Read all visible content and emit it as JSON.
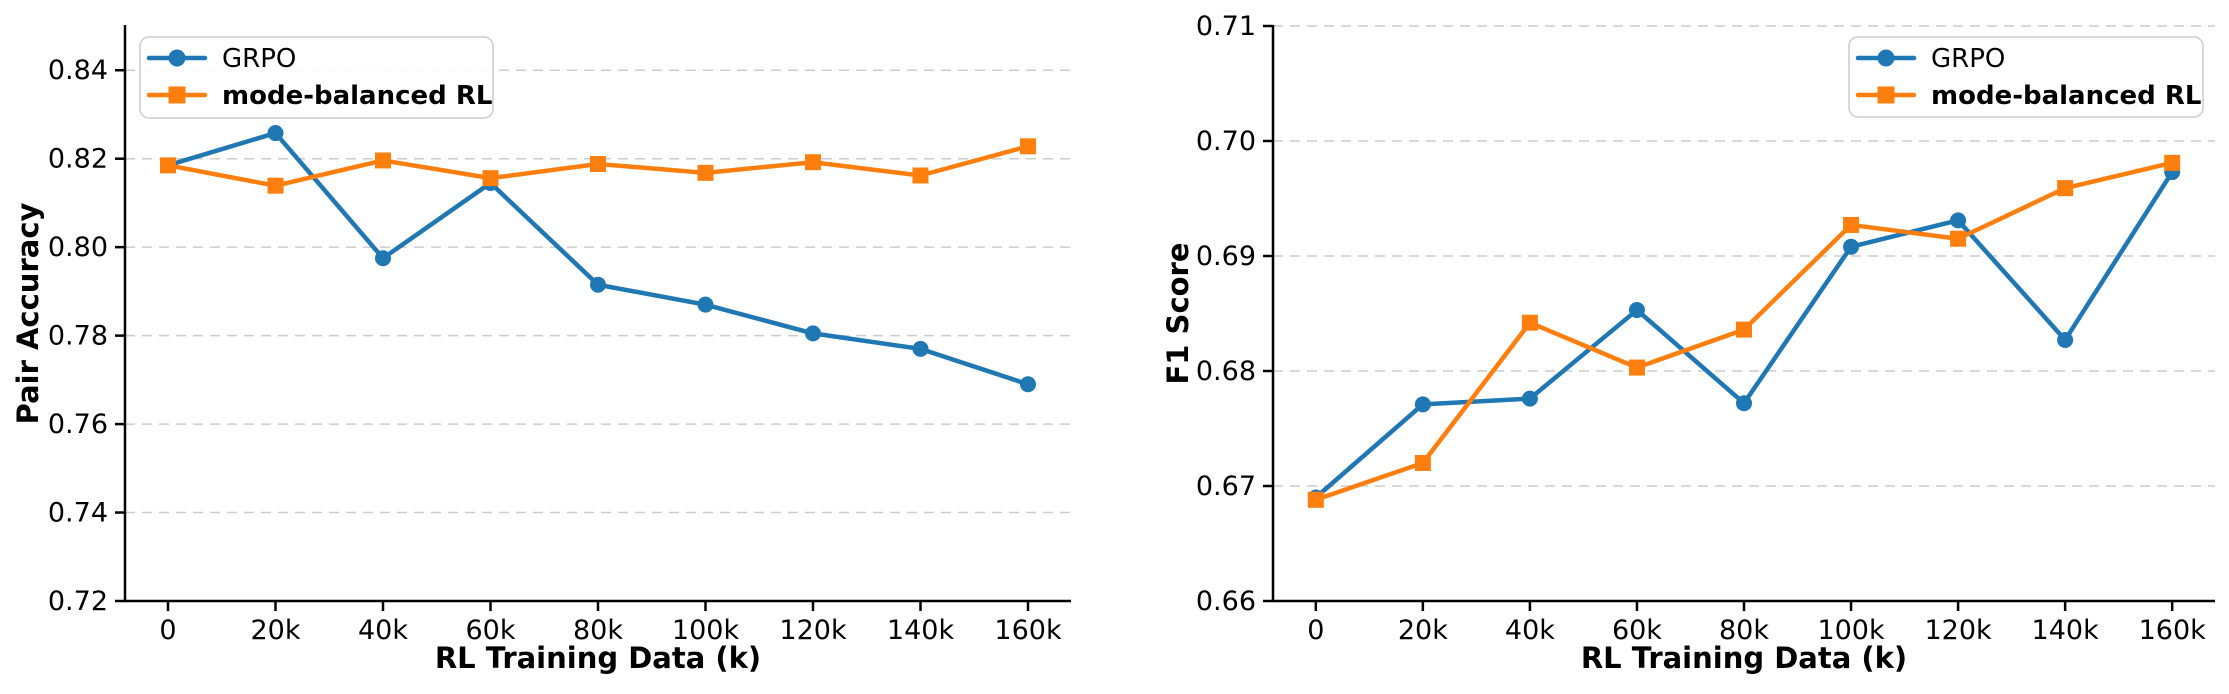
{
  "figure": {
    "background_color": "#ffffff",
    "n_subplots": 2
  },
  "chart_data": [
    {
      "type": "line",
      "title": "",
      "xlabel": "RL Training Data (k)",
      "ylabel": "Pair Accuracy",
      "categories": [
        "0",
        "20k",
        "40k",
        "60k",
        "80k",
        "100k",
        "120k",
        "140k",
        "160k"
      ],
      "x_numeric": [
        0,
        20000,
        40000,
        60000,
        80000,
        100000,
        120000,
        140000,
        160000
      ],
      "xlim": [
        -8000,
        168000
      ],
      "ylim": [
        0.72,
        0.85
      ],
      "yticks": [
        0.72,
        0.74,
        0.76,
        0.78,
        0.8,
        0.82,
        0.84
      ],
      "ytick_labels": [
        "0.72",
        "0.74",
        "0.76",
        "0.78",
        "0.80",
        "0.82",
        "0.84"
      ],
      "grid": "horizontal dashed",
      "grid_color": "#cccccc",
      "legend_position": "top-left",
      "series": [
        {
          "name": "GRPO",
          "color": "#1f77b4",
          "marker": "circle",
          "bold_label": false,
          "values": [
            0.8185,
            0.8258,
            0.7975,
            0.8145,
            0.7915,
            0.787,
            0.7805,
            0.777,
            0.769
          ]
        },
        {
          "name": "mode-balanced RL",
          "color": "#ff7f0e",
          "marker": "square",
          "bold_label": true,
          "values": [
            0.8185,
            0.8139,
            0.8196,
            0.8156,
            0.8188,
            0.8168,
            0.8192,
            0.8162,
            0.8228
          ]
        }
      ]
    },
    {
      "type": "line",
      "title": "",
      "xlabel": "RL Training Data (k)",
      "ylabel": "F1 Score",
      "categories": [
        "0",
        "20k",
        "40k",
        "60k",
        "80k",
        "100k",
        "120k",
        "140k",
        "160k"
      ],
      "x_numeric": [
        0,
        20000,
        40000,
        60000,
        80000,
        100000,
        120000,
        140000,
        160000
      ],
      "xlim": [
        -8000,
        168000
      ],
      "ylim": [
        0.66,
        0.71
      ],
      "yticks": [
        0.66,
        0.67,
        0.68,
        0.69,
        0.7,
        0.71
      ],
      "ytick_labels": [
        "0.66",
        "0.67",
        "0.68",
        "0.69",
        "0.70",
        "0.71"
      ],
      "grid": "horizontal dashed",
      "grid_color": "#cccccc",
      "legend_position": "top-right",
      "series": [
        {
          "name": "GRPO",
          "color": "#1f77b4",
          "marker": "circle",
          "bold_label": false,
          "values": [
            0.669,
            0.6771,
            0.6776,
            0.6853,
            0.6772,
            0.6908,
            0.6931,
            0.6827,
            0.6973
          ]
        },
        {
          "name": "mode-balanced RL",
          "color": "#ff7f0e",
          "marker": "square",
          "bold_label": true,
          "values": [
            0.6688,
            0.672,
            0.6842,
            0.6803,
            0.6836,
            0.6927,
            0.6915,
            0.6959,
            0.6981
          ]
        }
      ]
    }
  ]
}
